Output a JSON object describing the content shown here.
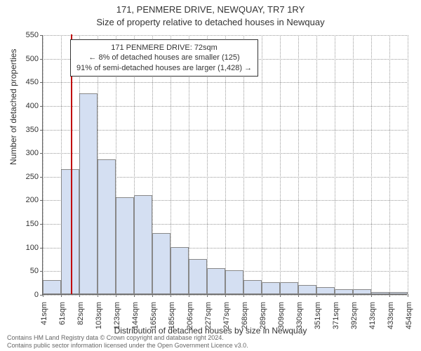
{
  "titles": {
    "main": "171, PENMERE DRIVE, NEWQUAY, TR7 1RY",
    "sub": "Size of property relative to detached houses in Newquay"
  },
  "chart": {
    "type": "histogram",
    "y_axis_title": "Number of detached properties",
    "x_axis_title": "Distribution of detached houses by size in Newquay",
    "ylim": [
      0,
      550
    ],
    "y_ticks": [
      0,
      50,
      100,
      150,
      200,
      250,
      300,
      350,
      400,
      450,
      500,
      550
    ],
    "x_tick_labels": [
      "41sqm",
      "61sqm",
      "82sqm",
      "103sqm",
      "123sqm",
      "144sqm",
      "165sqm",
      "185sqm",
      "206sqm",
      "227sqm",
      "247sqm",
      "268sqm",
      "289sqm",
      "309sqm",
      "330sqm",
      "351sqm",
      "371sqm",
      "392sqm",
      "413sqm",
      "433sqm",
      "454sqm"
    ],
    "bar_values": [
      30,
      265,
      425,
      285,
      205,
      210,
      130,
      100,
      75,
      55,
      50,
      30,
      25,
      25,
      20,
      15,
      10,
      10,
      5,
      5
    ],
    "bar_color": "#d4dff2",
    "bar_border_color": "#888888",
    "grid_color": "#999999",
    "background_color": "#ffffff",
    "marker": {
      "position_index": 1.55,
      "color": "#c00000"
    },
    "annotation": {
      "line1": "171 PENMERE DRIVE: 72sqm",
      "line2": "← 8% of detached houses are smaller (125)",
      "line3": "91% of semi-detached houses are larger (1,428) →"
    }
  },
  "footer": {
    "line1": "Contains HM Land Registry data © Crown copyright and database right 2024.",
    "line2": "Contains public sector information licensed under the Open Government Licence v3.0."
  }
}
